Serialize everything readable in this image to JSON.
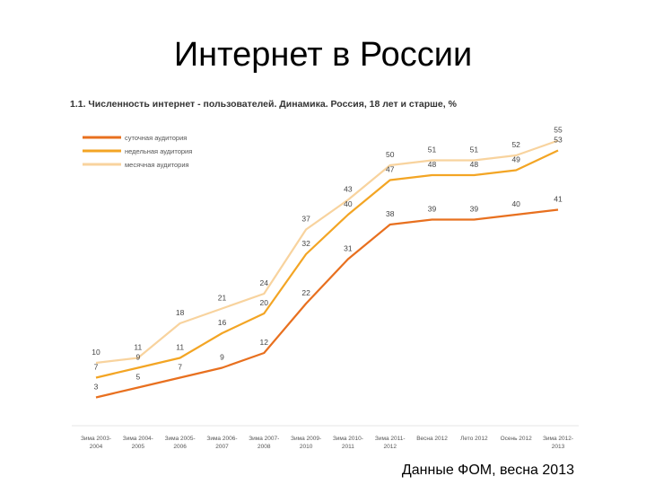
{
  "slide": {
    "title": "Интернет в России",
    "source": "Данные ФОМ, весна 2013"
  },
  "chart_data": {
    "type": "line",
    "title": "1.1. Численность интернет - пользователей. Динамика. Россия, 18 лет и старше, %",
    "categories": [
      "Зима 2003-2004",
      "Зима 2004-2005",
      "Зима 2005-2006",
      "Зима 2006-2007",
      "Зима 2007-2008",
      "Зима 2009-2010",
      "Зима 2010-2011",
      "Зима 2011-2012",
      "Весна 2012",
      "Лето 2012",
      "Осень 2012",
      "Зима 2012-2013"
    ],
    "tick_lines": [
      [
        "Зима 2003-",
        "2004"
      ],
      [
        "Зима 2004-",
        "2005"
      ],
      [
        "Зима 2005-",
        "2006"
      ],
      [
        "Зима 2006-",
        "2007"
      ],
      [
        "Зима 2007-",
        "2008"
      ],
      [
        "Зима 2009-",
        "2010"
      ],
      [
        "Зима 2010-",
        "2011"
      ],
      [
        "Зима 2011-",
        "2012"
      ],
      [
        "Весна 2012",
        ""
      ],
      [
        "Лето 2012",
        ""
      ],
      [
        "Осень 2012",
        ""
      ],
      [
        "Зима 2012-",
        "2013"
      ]
    ],
    "series": [
      {
        "name": "суточная аудитория",
        "color": "#e8701f",
        "values": [
          3,
          5,
          7,
          9,
          12,
          22,
          31,
          38,
          39,
          39,
          40,
          41
        ]
      },
      {
        "name": "недельная аудитория",
        "color": "#f3a524",
        "values": [
          7,
          9,
          11,
          16,
          20,
          32,
          40,
          47,
          48,
          48,
          49,
          53
        ]
      },
      {
        "name": "месячная аудитория",
        "color": "#f8d39e",
        "values": [
          10,
          11,
          18,
          21,
          24,
          37,
          43,
          50,
          51,
          51,
          52,
          55
        ]
      }
    ],
    "ylim": [
      0,
      60
    ],
    "grid": false,
    "legend": "top-left"
  }
}
